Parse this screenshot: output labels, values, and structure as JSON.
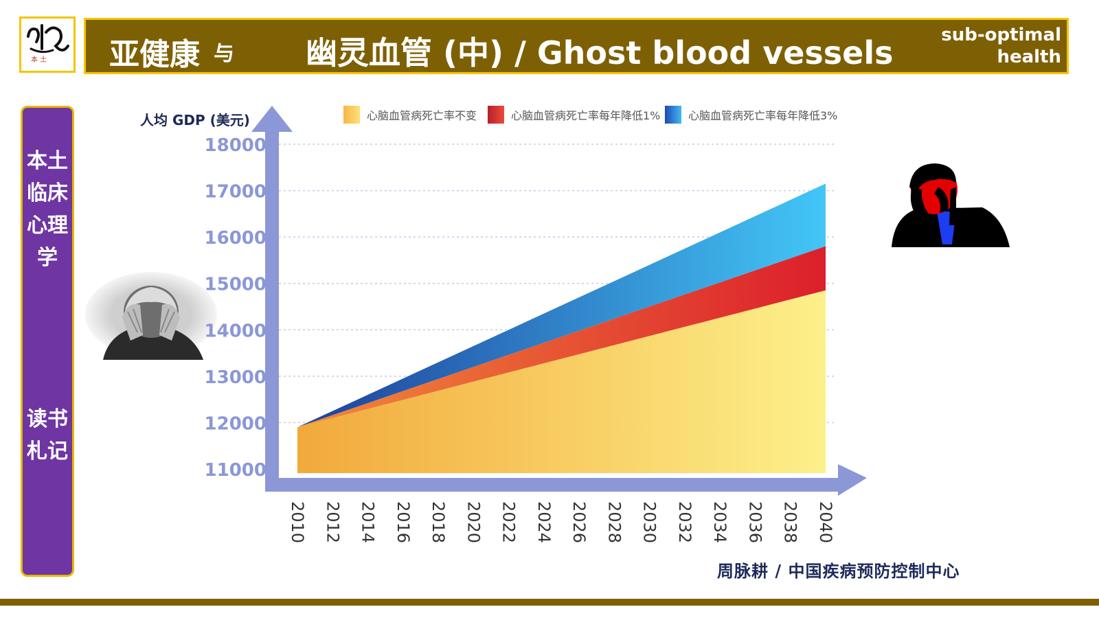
{
  "logo": {
    "small_text": "本  土"
  },
  "header": {
    "title_cn": "亚健康",
    "title_and": "与",
    "title_main": "幽灵血管 (中) / Ghost blood vessels",
    "title_en": "sub-optimal health"
  },
  "sidebar": {
    "line1": "本土临床心理学",
    "line2": "读书札记"
  },
  "credit": "周脉耕 / 中国疾病预防控制中心",
  "chart_data": {
    "type": "area",
    "ylabel": "人均 GDP (美元)",
    "ylim": [
      11000,
      18000
    ],
    "yticks": [
      11000,
      12000,
      13000,
      14000,
      15000,
      16000,
      17000,
      18000
    ],
    "x": [
      2010,
      2040
    ],
    "xticks": [
      2010,
      2012,
      2014,
      2016,
      2018,
      2020,
      2022,
      2024,
      2026,
      2028,
      2030,
      2032,
      2034,
      2036,
      2038,
      2040
    ],
    "legend_position": "top",
    "series": [
      {
        "name": "心脑血管病死亡率不变",
        "start": 11900,
        "end": 14850,
        "color": "#f7b548"
      },
      {
        "name": "心脑血管病死亡率每年降低1%",
        "start": 11900,
        "end": 15800,
        "color": "#e0393a"
      },
      {
        "name": "心脑血管病死亡率每年降低3%",
        "start": 11900,
        "end": 17150,
        "color": "#3a8ee0"
      }
    ],
    "grid": true
  }
}
